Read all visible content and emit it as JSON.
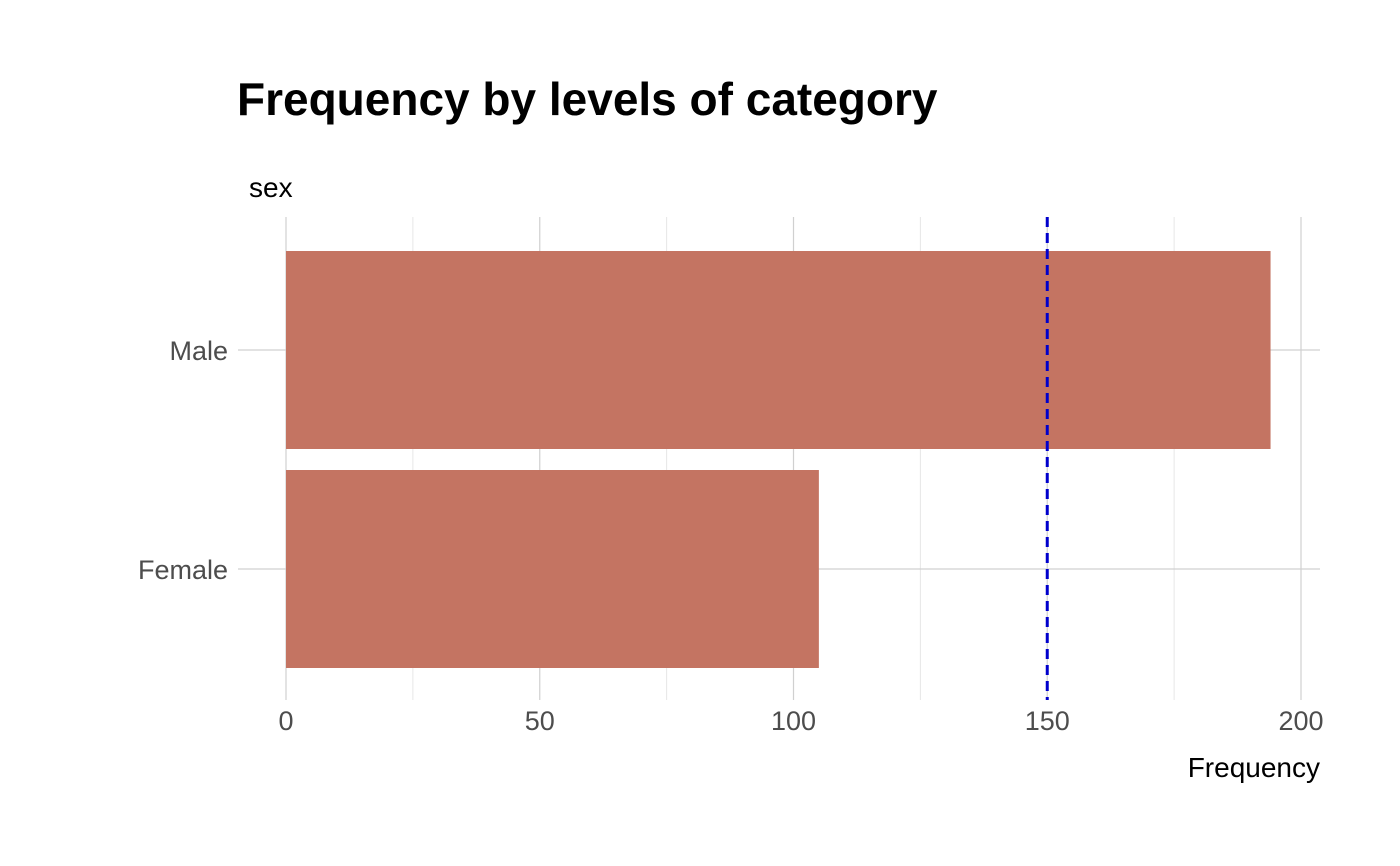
{
  "chart_data": {
    "type": "bar",
    "orientation": "horizontal",
    "title": "Frequency by levels of category",
    "xlabel": "Frequency",
    "ylabel": "sex",
    "categories": [
      "Male",
      "Female"
    ],
    "values": [
      194,
      105
    ],
    "xlim": [
      0,
      200
    ],
    "xticks": [
      0,
      50,
      100,
      150,
      200
    ],
    "reference_line": {
      "value": 150,
      "style": "dashed",
      "color": "#0000cc"
    },
    "bar_color": "#c47462",
    "grid": true,
    "legend": "none"
  }
}
